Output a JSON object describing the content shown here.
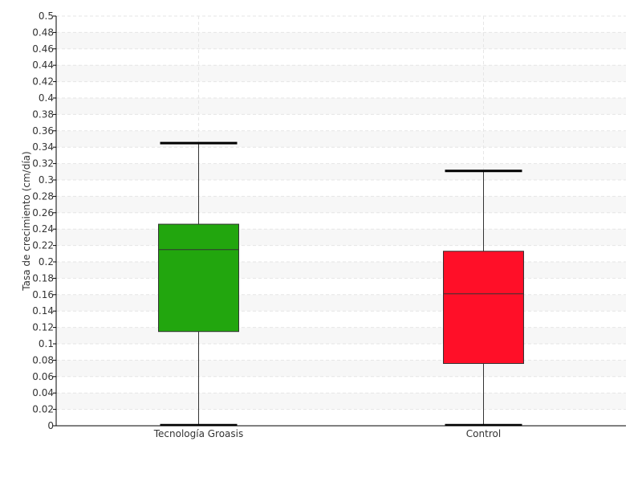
{
  "chart_data": {
    "type": "boxplot",
    "title": "",
    "xlabel": "",
    "ylabel": "Tasa de crecimiento (cm/día)",
    "ylim": [
      0,
      0.5
    ],
    "y_ticks": [
      "0",
      "0.02",
      "0.04",
      "0.06",
      "0.08",
      "0.1",
      "0.12",
      "0.14",
      "0.16",
      "0.18",
      "0.2",
      "0.22",
      "0.24",
      "0.26",
      "0.28",
      "0.3",
      "0.32",
      "0.34",
      "0.36",
      "0.38",
      "0.4",
      "0.42",
      "0.44",
      "0.46",
      "0.48",
      "0.5"
    ],
    "grid": true,
    "categories": [
      "Tecnología Groasis",
      "Control"
    ],
    "boxes": [
      {
        "category": "Tecnología Groasis",
        "min": 0.0,
        "q1": 0.115,
        "median": 0.215,
        "q3": 0.246,
        "max": 0.345,
        "color": "#22a60e"
      },
      {
        "category": "Control",
        "min": 0.0,
        "q1": 0.076,
        "median": 0.161,
        "q3": 0.213,
        "max": 0.311,
        "color": "#ff0f28"
      }
    ]
  }
}
